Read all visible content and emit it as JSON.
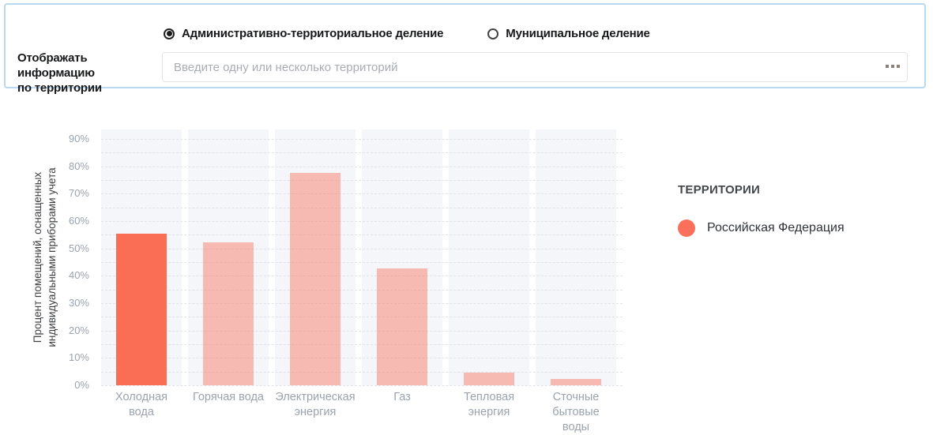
{
  "filter": {
    "label": "Отображать информацию\nпо территории",
    "radios": [
      {
        "label": "Административно-территориальное деление",
        "selected": true
      },
      {
        "label": "Муниципальное деление",
        "selected": false
      }
    ],
    "input_placeholder": "Введите одну или несколько территорий",
    "more_button_icon": "ellipsis-squares-icon",
    "panel_border_color": "#b9d9f2"
  },
  "chart_data": {
    "type": "bar",
    "title": "",
    "xlabel": "",
    "ylabel": "Процент помещений, оснащенных\nиндивидуальными приборами учета",
    "categories": [
      "Холодная\nвода",
      "Горячая вода",
      "Электрическая\nэнергия",
      "Газ",
      "Тепловая\nэнергия",
      "Сточные\nбытовые\nводы"
    ],
    "series": [
      {
        "name": "Российская Федерация",
        "values": [
          55.5,
          52.3,
          77.5,
          42.6,
          4.5,
          2.3
        ]
      }
    ],
    "ylim": [
      0,
      93.5
    ],
    "ytick_labels": [
      "0%",
      "10%",
      "20%",
      "30%",
      "40%",
      "50%",
      "60%",
      "70%",
      "80%",
      "90%"
    ],
    "ytick_step": 10,
    "minor_grid_step": 5,
    "grid": "dashed-horizontal",
    "highlighted_index": 0,
    "bar_color": "#fb6e56",
    "bar_color_muted": "rgba(251,110,86,0.44)",
    "band_color": "#f4f6fa",
    "legend_position": "right"
  },
  "legend": {
    "title": "ТЕРРИТОРИИ",
    "items": [
      {
        "label": "Российская Федерация",
        "color": "#fa705a"
      }
    ]
  }
}
